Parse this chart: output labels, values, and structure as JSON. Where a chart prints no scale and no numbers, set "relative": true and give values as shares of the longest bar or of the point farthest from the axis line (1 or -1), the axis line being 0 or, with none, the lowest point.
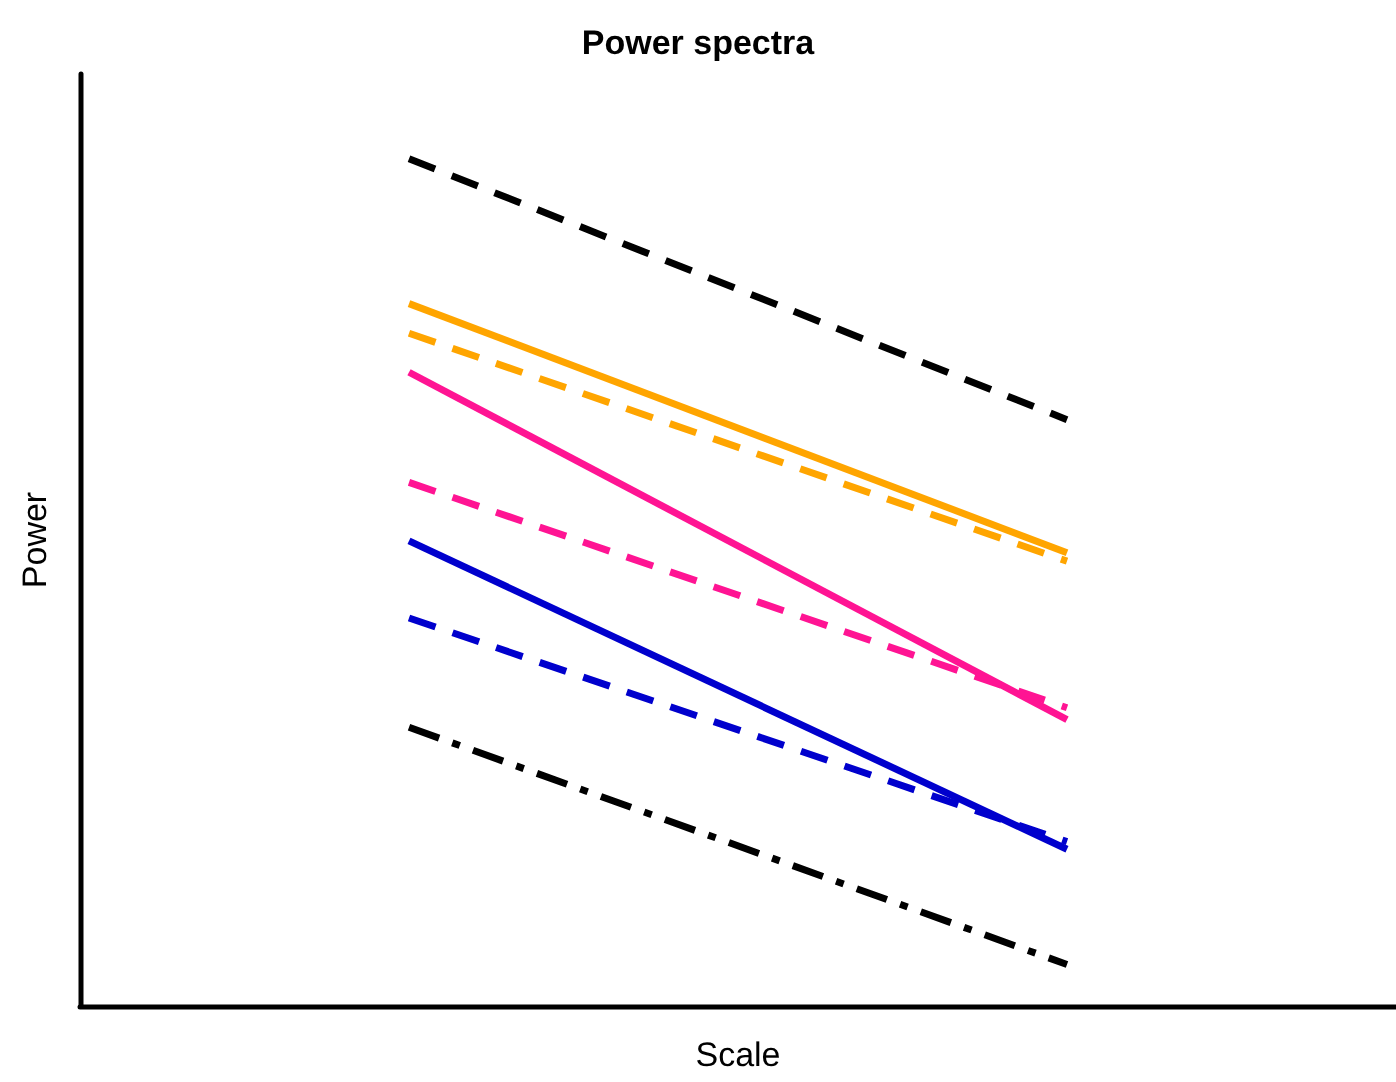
{
  "chart_data": {
    "type": "line",
    "title": "Power spectra",
    "xlabel": "Scale",
    "ylabel": "Power",
    "relative": true,
    "categories": [
      null,
      null
    ],
    "grid": false,
    "marker": "none",
    "series": [
      {
        "color": "#000000",
        "line_style": "dashed",
        "values": [
          1,
          0.692
        ]
      },
      {
        "color": "#ffa500",
        "line_style": "solid",
        "values": [
          0.829,
          0.535
        ]
      },
      {
        "color": "#ffa500",
        "line_style": "dashed",
        "values": [
          0.794,
          0.525
        ]
      },
      {
        "color": "#ff1493",
        "line_style": "solid",
        "values": [
          0.748,
          0.338
        ]
      },
      {
        "color": "#ff1493",
        "line_style": "dashed",
        "values": [
          0.618,
          0.352
        ]
      },
      {
        "color": "#0000cd",
        "line_style": "solid",
        "values": [
          0.549,
          0.185
        ]
      },
      {
        "color": "#0000cd",
        "line_style": "dashed",
        "values": [
          0.458,
          0.194
        ]
      },
      {
        "color": "#000000",
        "line_style": "dashdot",
        "values": [
          0.329,
          0.049
        ]
      }
    ]
  }
}
